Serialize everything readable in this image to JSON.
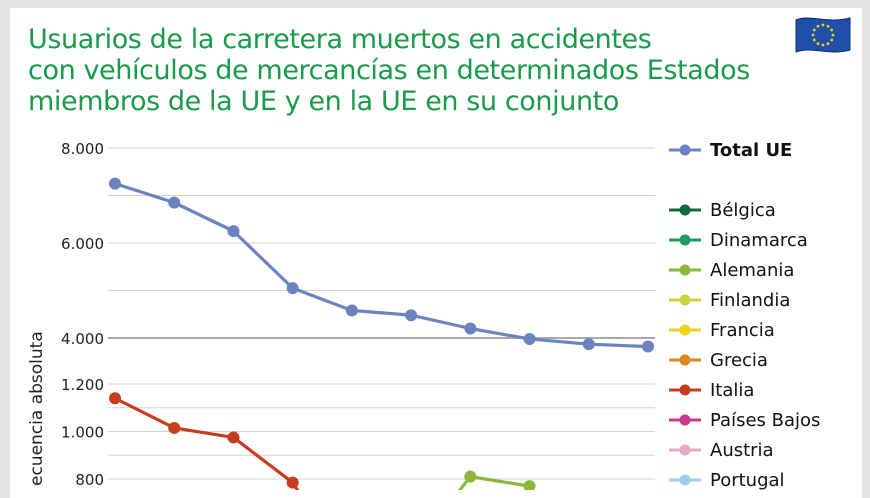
{
  "title_lines": [
    "Usuarios de la carretera muertos en accidentes",
    "con vehículos de mercancías en determinados Estados",
    "miembros de la UE y en la UE en su conjunto"
  ],
  "chart_data": {
    "type": "line",
    "title": "Usuarios de la carretera muertos en accidentes con vehículos de mercancías en determinados Estados miembros de la UE y en la UE en su conjunto",
    "ylabel": "ecuencia absoluta",
    "axis_break": true,
    "upper_panel": {
      "ylim": [
        4000,
        8000
      ],
      "ticks": [
        {
          "value": 8000,
          "label": "8.000"
        },
        {
          "value": 6000,
          "label": "6.000"
        },
        {
          "value": 4000,
          "label": "4.000"
        }
      ]
    },
    "lower_panel": {
      "ylim": [
        800,
        1200
      ],
      "ticks": [
        {
          "value": 1200,
          "label": "1.200"
        },
        {
          "value": 1000,
          "label": "1.000"
        },
        {
          "value": 800,
          "label": "800"
        }
      ]
    },
    "x_count": 10,
    "series": [
      {
        "name": "Total UE",
        "color": "#6b84c0",
        "panel": "upper",
        "values": [
          7250,
          6850,
          6250,
          5050,
          4580,
          4480,
          4200,
          3980,
          3870,
          3820
        ]
      },
      {
        "name": "Bélgica",
        "color": "#0c6b3a",
        "panel": "lower",
        "values": []
      },
      {
        "name": "Dinamarca",
        "color": "#1f9a5e",
        "panel": "lower",
        "values": []
      },
      {
        "name": "Alemania",
        "color": "#8ab83c",
        "panel": "lower",
        "values": [
          null,
          null,
          null,
          null,
          null,
          null,
          810,
          770,
          null,
          null
        ]
      },
      {
        "name": "Finlandia",
        "color": "#c9d43a",
        "panel": "lower",
        "values": []
      },
      {
        "name": "Francia",
        "color": "#f2d21a",
        "panel": "lower",
        "values": []
      },
      {
        "name": "Grecia",
        "color": "#d98a22",
        "panel": "lower",
        "values": []
      },
      {
        "name": "Italia",
        "color": "#c63c1e",
        "panel": "lower",
        "values": [
          1140,
          1015,
          975,
          785,
          null,
          null,
          null,
          null,
          null,
          null
        ]
      },
      {
        "name": "Países Bajos",
        "color": "#c83a8a",
        "panel": "lower",
        "values": []
      },
      {
        "name": "Austria",
        "color": "#e7aac6",
        "panel": "lower",
        "values": []
      },
      {
        "name": "Portugal",
        "color": "#9ecdea",
        "panel": "lower",
        "values": []
      }
    ],
    "legend_position": "right"
  },
  "colors": {
    "title": "#1a9a4a",
    "grid": "#cfcfcf",
    "flag_blue": "#1f4fa8",
    "flag_star": "#f2d21a"
  }
}
